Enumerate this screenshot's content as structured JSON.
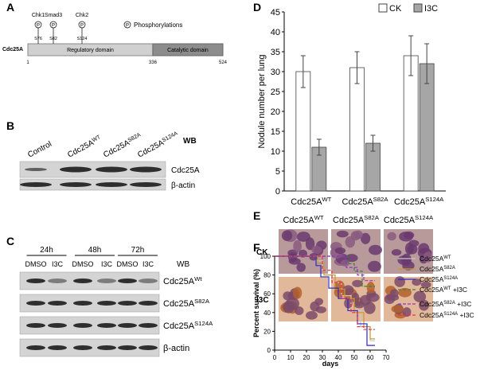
{
  "panels": [
    "A",
    "B",
    "C",
    "D",
    "E",
    "F"
  ],
  "diagram": {
    "protein": "Cdc25A",
    "kinases": [
      "Chk1",
      "Smad3",
      "Chk2"
    ],
    "sites": [
      "S76",
      "S82",
      "S124"
    ],
    "phospho_symbol": "P",
    "legend": "Phosphorylations",
    "domains": [
      "Regulatory domain",
      "Catalytic domain"
    ],
    "positions": [
      1,
      336,
      524
    ]
  },
  "blot_b": {
    "columns": [
      {
        "base": "Control"
      },
      {
        "base": "Cdc25A",
        "sup": "WT"
      },
      {
        "base": "Cdc25A",
        "sup": "S82A"
      },
      {
        "base": "Cdc25A",
        "sup": "S124A"
      }
    ],
    "wb": "WB",
    "rows": [
      {
        "base": "Cdc25A"
      },
      {
        "base": "β-actin"
      }
    ]
  },
  "blot_c": {
    "times": [
      "24h",
      "48h",
      "72h"
    ],
    "treatments": [
      "DMSO",
      "I3C",
      "DMSO",
      "I3C",
      "DMSO",
      "I3C"
    ],
    "wb": "WB",
    "rows": [
      {
        "base": "Cdc25A",
        "sup": "Wt"
      },
      {
        "base": "Cdc25A",
        "sup": "S82A"
      },
      {
        "base": "Cdc25A",
        "sup": "S124A"
      },
      {
        "base": "β-actin"
      }
    ]
  },
  "histology": {
    "columns": [
      {
        "base": "Cdc25A",
        "sup": "WT"
      },
      {
        "base": "Cdc25A",
        "sup": "S82A"
      },
      {
        "base": "Cdc25A",
        "sup": "S124A"
      }
    ],
    "rows": [
      "CK",
      "I3C"
    ]
  },
  "chart_data": [
    {
      "type": "bar",
      "categories": [
        "Cdc25A",
        "Cdc25A",
        "Cdc25A"
      ],
      "category_superscripts": [
        "WT",
        "S82A",
        "S124A"
      ],
      "ylabel": "Nodule number per lung",
      "ylim": [
        0,
        45
      ],
      "yticks": [
        0,
        5,
        10,
        15,
        20,
        25,
        30,
        35,
        40,
        45
      ],
      "legend": "top-right",
      "series": [
        {
          "name": "CK",
          "color": "#ffffff",
          "values": [
            30,
            31,
            34
          ],
          "errors": [
            4,
            4,
            5
          ]
        },
        {
          "name": "I3C",
          "color": "#a6a6a6",
          "values": [
            11,
            12,
            32
          ],
          "errors": [
            2,
            2,
            5
          ]
        }
      ]
    },
    {
      "type": "line",
      "xlabel": "days",
      "ylabel": "Percent survival (%)",
      "xlim": [
        0,
        70
      ],
      "xticks": [
        0,
        10,
        20,
        30,
        40,
        50,
        60,
        70
      ],
      "ylim": [
        0,
        100
      ],
      "yticks": [
        0,
        20,
        40,
        60,
        80,
        100
      ],
      "legend": "right",
      "series": [
        {
          "name": "Cdc25A",
          "sup": "WT",
          "color": "#c8c8c8",
          "dashed": false,
          "x": [
            0,
            26,
            26,
            30,
            30,
            36,
            36,
            42,
            42,
            48,
            48,
            54,
            54,
            60,
            60,
            63
          ],
          "values": [
            100,
            100,
            95,
            95,
            85,
            85,
            72,
            72,
            58,
            58,
            42,
            42,
            25,
            25,
            10,
            10
          ]
        },
        {
          "name": "Cdc25A",
          "sup": "S82A",
          "color": "#c89a2a",
          "dashed": false,
          "x": [
            0,
            27,
            27,
            31,
            31,
            38,
            38,
            44,
            44,
            50,
            50,
            56,
            56,
            60,
            60,
            63
          ],
          "values": [
            100,
            100,
            92,
            92,
            80,
            80,
            65,
            65,
            55,
            55,
            40,
            40,
            25,
            25,
            12,
            12
          ]
        },
        {
          "name": "Cdc25A",
          "sup": "S124A",
          "color": "#2a2ad0",
          "dashed": false,
          "x": [
            0,
            26,
            26,
            29,
            29,
            34,
            34,
            40,
            40,
            46,
            46,
            52,
            52,
            58,
            58,
            63
          ],
          "values": [
            100,
            100,
            90,
            90,
            78,
            78,
            66,
            66,
            55,
            55,
            42,
            42,
            28,
            28,
            5,
            5
          ]
        },
        {
          "name": "Cdc25A",
          "sup": "WT",
          "suffix": " +I3C",
          "color": "#2e8b2e",
          "dashed": true,
          "x": [
            0,
            46,
            46,
            50,
            50,
            55,
            55,
            63
          ],
          "values": [
            100,
            100,
            92,
            92,
            84,
            84,
            68,
            68
          ]
        },
        {
          "name": "Cdc25A",
          "sup": "S82A",
          "suffix": " +I3C",
          "color": "#9b30d0",
          "dashed": true,
          "x": [
            0,
            45,
            45,
            52,
            52,
            56,
            56,
            63
          ],
          "values": [
            100,
            100,
            88,
            88,
            80,
            80,
            74,
            74
          ]
        },
        {
          "name": "Cdc25A",
          "sup": "S124A",
          "suffix": " +I3C",
          "color": "#e8304a",
          "dashed": true,
          "x": [
            0,
            30,
            30,
            36,
            36,
            42,
            42,
            48,
            48,
            52,
            52,
            56,
            56,
            63
          ],
          "values": [
            100,
            100,
            85,
            85,
            72,
            72,
            55,
            55,
            40,
            40,
            25,
            25,
            22,
            22
          ]
        }
      ]
    }
  ]
}
